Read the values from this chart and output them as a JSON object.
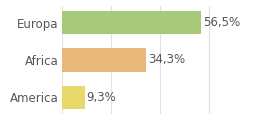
{
  "categories": [
    "Europa",
    "Africa",
    "America"
  ],
  "values": [
    56.5,
    34.3,
    9.3
  ],
  "labels": [
    "56,5%",
    "34,3%",
    "9,3%"
  ],
  "bar_colors": [
    "#a8c87a",
    "#e8b87a",
    "#e8d96a"
  ],
  "background_color": "#ffffff",
  "xlim": [
    0,
    75
  ],
  "bar_height": 0.62,
  "label_fontsize": 8.5,
  "tick_fontsize": 8.5,
  "grid_color": "#e0e0e0",
  "text_color": "#555555"
}
